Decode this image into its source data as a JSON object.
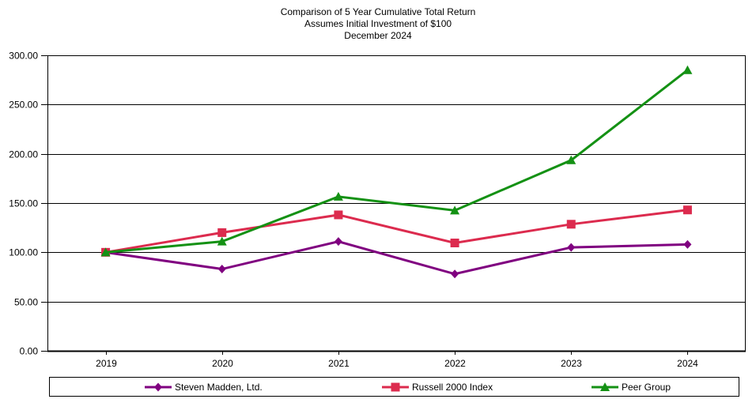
{
  "title": {
    "line1": "Comparison of 5 Year Cumulative Total Return",
    "line2": "Assumes Initial Investment of $100",
    "line3": "December 2024"
  },
  "chart_data": {
    "type": "line",
    "title": "Comparison of 5 Year Cumulative Total Return",
    "subtitle": "Assumes Initial Investment of $100",
    "date_label": "December 2024",
    "categories": [
      "2019",
      "2020",
      "2021",
      "2022",
      "2023",
      "2024"
    ],
    "series": [
      {
        "name": "Steven Madden, Ltd.",
        "color": "#800080",
        "marker": "diamond",
        "values": [
          100.0,
          83.0,
          111.0,
          78.0,
          105.0,
          108.0
        ]
      },
      {
        "name": "Russell 2000 Index",
        "color": "#DC2B4E",
        "marker": "square",
        "values": [
          100.0,
          120.0,
          138.0,
          109.5,
          128.5,
          143.0
        ]
      },
      {
        "name": "Peer Group",
        "color": "#149114",
        "marker": "triangle",
        "values": [
          100.0,
          111.0,
          156.5,
          142.5,
          193.5,
          285.0
        ]
      }
    ],
    "xlabel": "",
    "ylabel": "",
    "ylim": [
      0,
      300
    ],
    "ytick_interval": 50,
    "ytick_labels": [
      "0.00",
      "50.00",
      "100.00",
      "150.00",
      "200.00",
      "250.00",
      "300.00"
    ],
    "grid": "horizontal",
    "legend_position": "bottom",
    "axis_color": "#000000"
  }
}
